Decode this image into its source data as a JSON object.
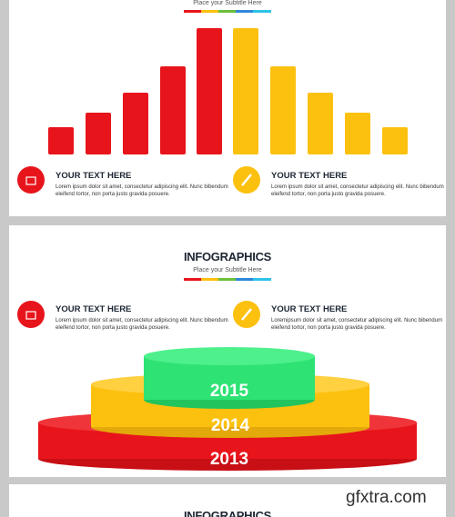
{
  "slides": [
    {
      "subtitle": "Place your Subtitle Here",
      "items": [
        {
          "heading": "YOUR TEXT HERE",
          "lines": [
            "Lorem ipsum dolor sit amet, consectetur adipiscing elit. Nunc bibendum",
            "eleifend tortor, non porta justo gravida posuere."
          ]
        },
        {
          "heading": "YOUR TEXT HERE",
          "lines": [
            "Lorem ipsum dolor sit amet, consectetur adipiscing elit. Nunc bibendum",
            "eleifend tortor, non porta justo gravida posuere."
          ]
        }
      ]
    },
    {
      "title": "INFOGRAPHICS",
      "subtitle": "Place your Subtitle Here",
      "items": [
        {
          "heading": "YOUR TEXT HERE",
          "lines": [
            "Lorem ipsum dolor sit amet, consectetur adipiscing elit. Nunc bibendum",
            "eleifend tortor, non porta justo gravida posuere."
          ]
        },
        {
          "heading": "YOUR TEXT HERE",
          "lines": [
            "Loremipsum dolor sit amet, consectetur adipiscing elit. Nunc bibendum",
            "eleifend tortor, non porta justo gravida posuere."
          ]
        }
      ],
      "years": [
        "2015",
        "2014",
        "2013"
      ]
    },
    {
      "title": "INFOGRAPHICS"
    }
  ],
  "watermark": "gfxtra.com"
}
